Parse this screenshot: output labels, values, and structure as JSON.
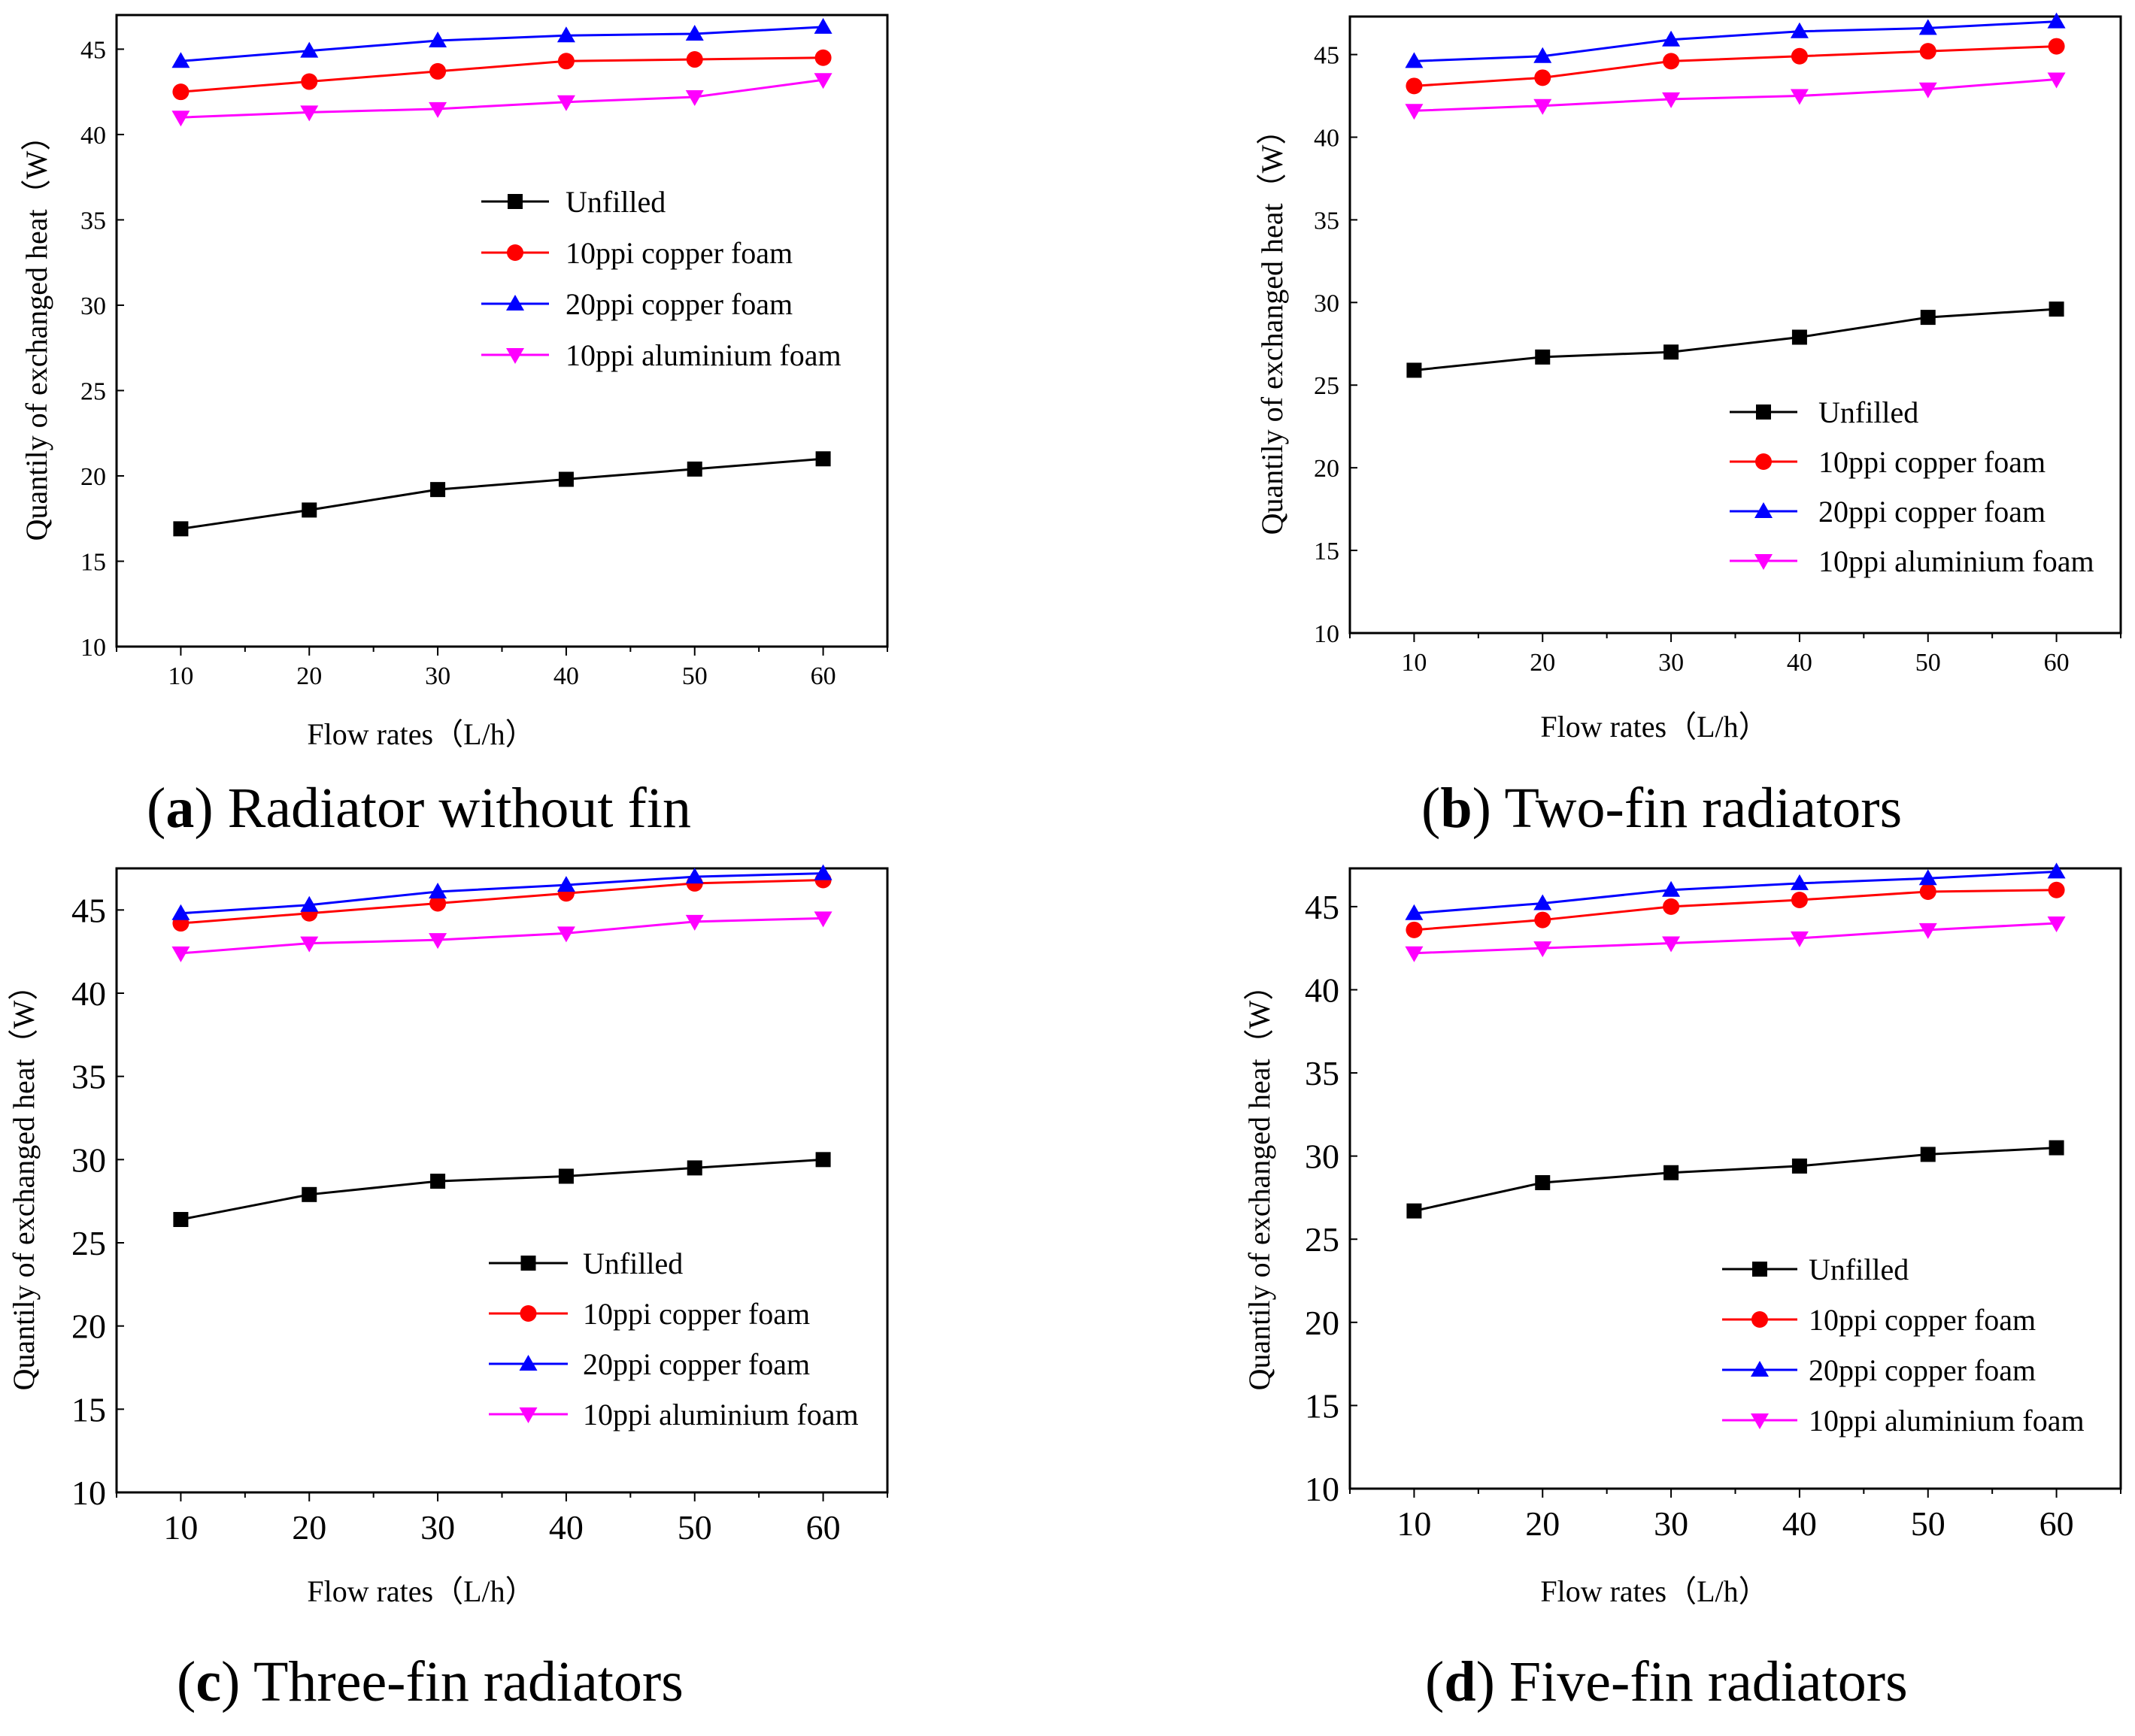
{
  "figure": {
    "panels": [
      {
        "letter": "a",
        "caption": " Radiator without fin"
      },
      {
        "letter": "b",
        "caption": " Two-fin radiators"
      },
      {
        "letter": "c",
        "caption": " Three-fin radiators"
      },
      {
        "letter": "d",
        "caption": " Five-fin radiators"
      }
    ]
  },
  "colors": {
    "Unfilled": "#000000",
    "10ppi copper foam": "#ff0000",
    "20ppi copper foam": "#0000ff",
    "10ppi aluminium foam": "#ff00ff"
  },
  "chart_data": [
    {
      "type": "line",
      "title": "(a) Radiator without fin",
      "xlabel": "Flow rates（L/h）",
      "ylabel": "Quantily of exchanged heat（W）",
      "x": [
        10,
        20,
        30,
        40,
        50,
        60
      ],
      "xlim": [
        5,
        65
      ],
      "ylim": [
        10,
        47
      ],
      "yticks": [
        10,
        15,
        20,
        25,
        30,
        35,
        40,
        45
      ],
      "legend_position": "center-right",
      "series": [
        {
          "name": "Unfilled",
          "marker": "square",
          "values": [
            16.9,
            18.0,
            19.2,
            19.8,
            20.4,
            21.0
          ]
        },
        {
          "name": "10ppi copper foam",
          "marker": "circle",
          "values": [
            42.5,
            43.1,
            43.7,
            44.3,
            44.4,
            44.5
          ]
        },
        {
          "name": "20ppi copper foam",
          "marker": "triangle-up",
          "values": [
            44.3,
            44.9,
            45.5,
            45.8,
            45.9,
            46.3
          ]
        },
        {
          "name": "10ppi aluminium foam",
          "marker": "triangle-down",
          "values": [
            41.0,
            41.3,
            41.5,
            41.9,
            42.2,
            43.2
          ]
        }
      ]
    },
    {
      "type": "line",
      "title": "(b) Two-fin radiators",
      "xlabel": "Flow rates（L/h）",
      "ylabel": "Quantily of exchanged heat（W）",
      "x": [
        10,
        20,
        30,
        40,
        50,
        60
      ],
      "xlim": [
        5,
        65
      ],
      "ylim": [
        10,
        47.3
      ],
      "yticks": [
        10,
        15,
        20,
        25,
        30,
        35,
        40,
        45
      ],
      "legend_position": "lower-right",
      "series": [
        {
          "name": "Unfilled",
          "marker": "square",
          "values": [
            25.9,
            26.7,
            27.0,
            27.9,
            29.1,
            29.6
          ]
        },
        {
          "name": "10ppi copper foam",
          "marker": "circle",
          "values": [
            43.1,
            43.6,
            44.6,
            44.9,
            45.2,
            45.5
          ]
        },
        {
          "name": "20ppi copper foam",
          "marker": "triangle-up",
          "values": [
            44.6,
            44.9,
            45.9,
            46.4,
            46.6,
            47.0
          ]
        },
        {
          "name": "10ppi aluminium foam",
          "marker": "triangle-down",
          "values": [
            41.6,
            41.9,
            42.3,
            42.5,
            42.9,
            43.5
          ]
        }
      ]
    },
    {
      "type": "line",
      "title": "(c) Three-fin radiators",
      "xlabel": "Flow rates（L/h）",
      "ylabel": "Quantily of exchanged heat（W）",
      "x": [
        10,
        20,
        30,
        40,
        50,
        60
      ],
      "xlim": [
        5,
        65
      ],
      "ylim": [
        10,
        47.5
      ],
      "yticks": [
        10,
        15,
        20,
        25,
        30,
        35,
        40,
        45
      ],
      "legend_position": "lower-right",
      "series": [
        {
          "name": "Unfilled",
          "marker": "square",
          "values": [
            26.4,
            27.9,
            28.7,
            29.0,
            29.5,
            30.0
          ]
        },
        {
          "name": "10ppi copper foam",
          "marker": "circle",
          "values": [
            44.2,
            44.8,
            45.4,
            46.0,
            46.6,
            46.8
          ]
        },
        {
          "name": "20ppi copper foam",
          "marker": "triangle-up",
          "values": [
            44.8,
            45.3,
            46.1,
            46.5,
            47.0,
            47.2
          ]
        },
        {
          "name": "10ppi aluminium foam",
          "marker": "triangle-down",
          "values": [
            42.4,
            43.0,
            43.2,
            43.6,
            44.3,
            44.5
          ]
        }
      ]
    },
    {
      "type": "line",
      "title": "(d) Five-fin radiators",
      "xlabel": "Flow rates（L/h）",
      "ylabel": "Quantily of exchanged heat（W）",
      "x": [
        10,
        20,
        30,
        40,
        50,
        60
      ],
      "xlim": [
        5,
        65
      ],
      "ylim": [
        10,
        47.3
      ],
      "yticks": [
        10,
        15,
        20,
        25,
        30,
        35,
        40,
        45
      ],
      "legend_position": "lower-right",
      "series": [
        {
          "name": "Unfilled",
          "marker": "square",
          "values": [
            26.7,
            28.4,
            29.0,
            29.4,
            30.1,
            30.5
          ]
        },
        {
          "name": "10ppi copper foam",
          "marker": "circle",
          "values": [
            43.6,
            44.2,
            45.0,
            45.4,
            45.9,
            46.0
          ]
        },
        {
          "name": "20ppi copper foam",
          "marker": "triangle-up",
          "values": [
            44.6,
            45.2,
            46.0,
            46.4,
            46.7,
            47.1
          ]
        },
        {
          "name": "10ppi aluminium foam",
          "marker": "triangle-down",
          "values": [
            42.2,
            42.5,
            42.8,
            43.1,
            43.6,
            44.0
          ]
        }
      ]
    }
  ]
}
